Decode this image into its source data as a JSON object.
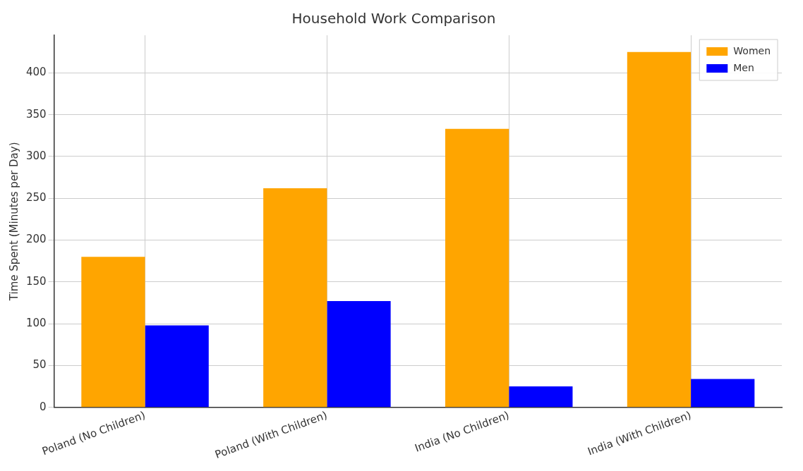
{
  "chart_data": {
    "type": "bar",
    "title": "Household Work Comparison",
    "ylabel": "Time Spent (Minutes per Day)",
    "categories": [
      "Poland (No Children)",
      "Poland (With Children)",
      "India (No Children)",
      "India (With Children)"
    ],
    "series": [
      {
        "name": "Women",
        "color": "#ffa500",
        "values": [
          180,
          262,
          333,
          425
        ]
      },
      {
        "name": "Men",
        "color": "#0000ff",
        "values": [
          98,
          127,
          25,
          34
        ]
      }
    ],
    "ylim": [
      0,
      445
    ],
    "yticks": [
      0,
      50,
      100,
      150,
      200,
      250,
      300,
      350,
      400
    ],
    "grid": true,
    "legend": "top right"
  }
}
